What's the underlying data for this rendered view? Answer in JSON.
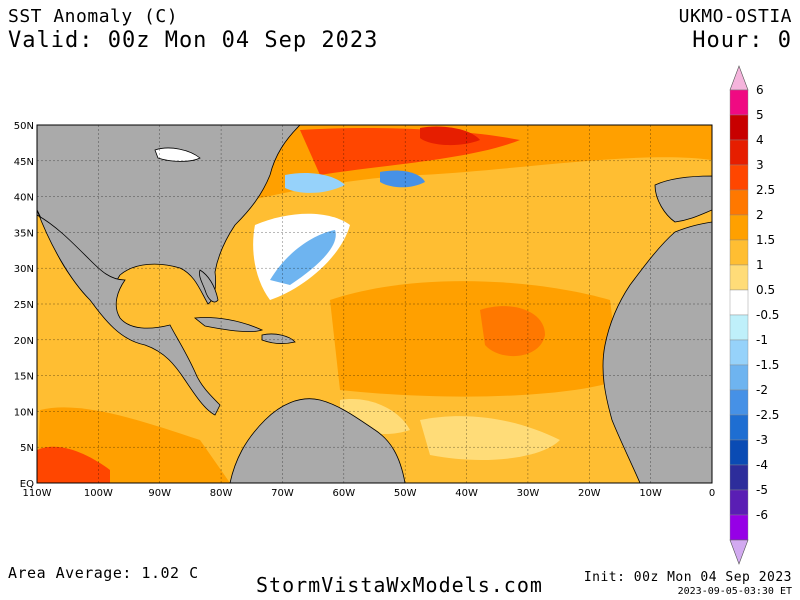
{
  "header": {
    "title": "SST Anomaly (C)",
    "valid": "Valid: 00z Mon 04 Sep 2023",
    "model": "UKMO-OSTIA",
    "hour": "Hour: 0"
  },
  "footer": {
    "area_average": "Area Average: 1.02 C",
    "site": "StormVistaWxModels.com",
    "init": "Init: 00z Mon 04 Sep 2023",
    "timestamp": "2023-09-05-03:30 ET"
  },
  "map": {
    "lat_labels": [
      "50N",
      "45N",
      "40N",
      "35N",
      "30N",
      "25N",
      "20N",
      "15N",
      "10N",
      "5N",
      "EQ"
    ],
    "lon_labels": [
      "110W",
      "100W",
      "90W",
      "80W",
      "70W",
      "60W",
      "50W",
      "40W",
      "30W",
      "20W",
      "10W",
      "0"
    ],
    "lat_range": [
      0,
      50
    ],
    "lon_range": [
      -110,
      0
    ],
    "grid": true,
    "land_color": "#aaaaaa",
    "area_average_value": 1.02,
    "units": "C"
  },
  "colorbar": {
    "labels": [
      "6",
      "5",
      "4",
      "3",
      "2.5",
      "2",
      "1.5",
      "1",
      "0.5",
      "-0.5",
      "-1",
      "-1.5",
      "-2",
      "-2.5",
      "-3",
      "-4",
      "-5",
      "-6"
    ],
    "colors": [
      "#f00a82",
      "#c80000",
      "#e61e00",
      "#ff4600",
      "#ff7800",
      "#ffa000",
      "#ffbe32",
      "#ffdc78",
      "#ffffff",
      "#bff0fa",
      "#96d2fa",
      "#6eb4f0",
      "#4691e6",
      "#1e6ed2",
      "#0a4bb4",
      "#2d2d9b",
      "#5a1eb4",
      "#9600e6"
    ],
    "top_arrow_color": "#f5b4dc",
    "bottom_arrow_color": "#d2aaf0"
  }
}
